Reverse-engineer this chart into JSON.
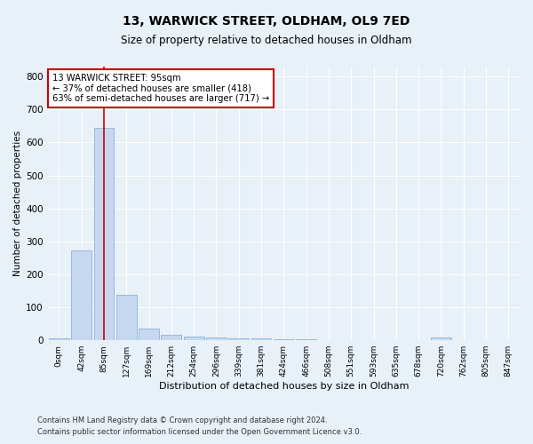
{
  "title_line1": "13, WARWICK STREET, OLDHAM, OL9 7ED",
  "title_line2": "Size of property relative to detached houses in Oldham",
  "xlabel": "Distribution of detached houses by size in Oldham",
  "ylabel": "Number of detached properties",
  "footer_line1": "Contains HM Land Registry data © Crown copyright and database right 2024.",
  "footer_line2": "Contains public sector information licensed under the Open Government Licence v3.0.",
  "bar_labels": [
    "0sqm",
    "42sqm",
    "85sqm",
    "127sqm",
    "169sqm",
    "212sqm",
    "254sqm",
    "296sqm",
    "339sqm",
    "381sqm",
    "424sqm",
    "466sqm",
    "508sqm",
    "551sqm",
    "593sqm",
    "635sqm",
    "678sqm",
    "720sqm",
    "762sqm",
    "805sqm",
    "847sqm"
  ],
  "bar_values": [
    5,
    272,
    643,
    137,
    36,
    16,
    10,
    8,
    6,
    5,
    4,
    4,
    0,
    0,
    0,
    0,
    0,
    8,
    0,
    0,
    0
  ],
  "bar_color": "#c5d8f0",
  "bar_edge_color": "#7faacc",
  "ylim": [
    0,
    830
  ],
  "yticks": [
    0,
    100,
    200,
    300,
    400,
    500,
    600,
    700,
    800
  ],
  "annotation_text": "13 WARWICK STREET: 95sqm\n← 37% of detached houses are smaller (418)\n63% of semi-detached houses are larger (717) →",
  "annotation_box_color": "#ffffff",
  "annotation_box_edge": "#cc0000",
  "red_line_color": "#cc0000",
  "background_color": "#e8f0f8",
  "grid_color": "#ffffff"
}
